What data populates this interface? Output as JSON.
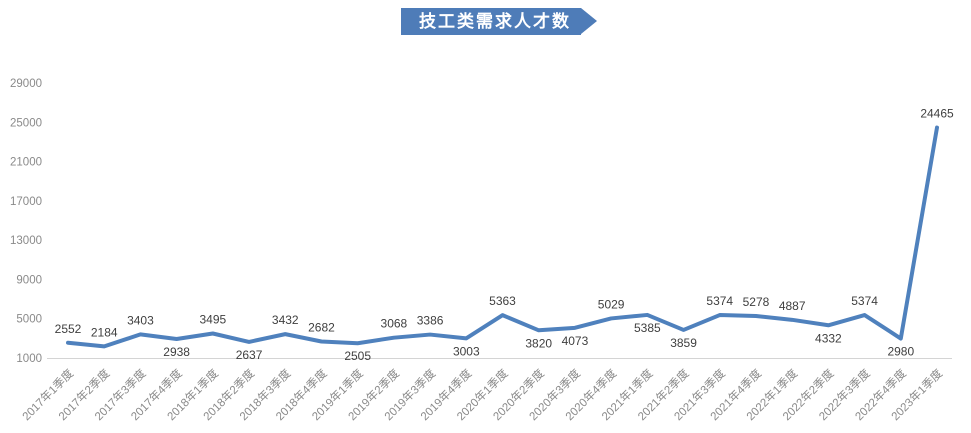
{
  "title": {
    "text": "技工类需求人才数"
  },
  "colors": {
    "background": "#ffffff",
    "banner_bg": "#4e7cb8",
    "banner_text": "#ffffff",
    "line": "#4f81bd",
    "data_label": "#3f3f3f",
    "tick_label": "#8a8a8a",
    "axis_line": "#d4d4d4"
  },
  "chart_data": {
    "type": "line",
    "title": "技工类需求人才数",
    "categories": [
      "2017年1季度",
      "2017年2季度",
      "2017年3季度",
      "2017年4季度",
      "2018年1季度",
      "2018年2季度",
      "2018年3季度",
      "2018年4季度",
      "2019年1季度",
      "2019年2季度",
      "2019年3季度",
      "2019年4季度",
      "2020年1季度",
      "2020年2季度",
      "2020年3季度",
      "2020年4季度",
      "2021年1季度",
      "2021年2季度",
      "2021年3季度",
      "2021年4季度",
      "2022年1季度",
      "2022年2季度",
      "2022年3季度",
      "2022年4季度",
      "2023年1季度"
    ],
    "values": [
      2552,
      2184,
      3403,
      2938,
      3495,
      2637,
      3432,
      2682,
      2505,
      3068,
      3386,
      3003,
      5363,
      3820,
      4073,
      5029,
      5385,
      3859,
      5374,
      5278,
      4887,
      4332,
      5374,
      2980,
      24465
    ],
    "data_label_side": [
      "above",
      "above",
      "above",
      "below",
      "above",
      "below",
      "above",
      "above",
      "below",
      "above",
      "above",
      "below",
      "above",
      "below",
      "below",
      "above",
      "below",
      "below",
      "above",
      "above",
      "above",
      "below",
      "above",
      "below",
      "above"
    ],
    "xlabel": "",
    "ylabel": "",
    "ylim": [
      1000,
      29000
    ],
    "yticks": [
      1000,
      5000,
      9000,
      13000,
      17000,
      21000,
      25000,
      29000
    ],
    "grid": false,
    "legend": "none",
    "data_labels_visible": true
  }
}
